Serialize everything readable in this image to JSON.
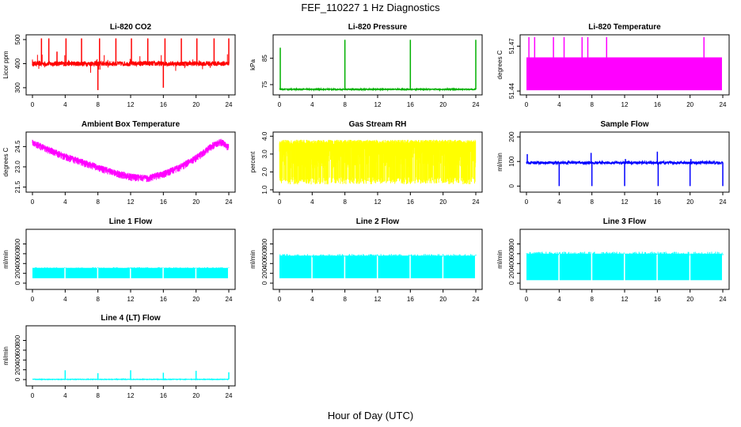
{
  "figure": {
    "title": "FEF_110227  1 Hz Diagnostics",
    "xlabel": "Hour of Day (UTC)"
  },
  "chart_data": [
    {
      "type": "line",
      "title": "Li-820 CO2",
      "ylabel": "Licor ppm",
      "color": "#ff0000",
      "xlim": [
        0,
        24
      ],
      "xticks": [
        0,
        4,
        8,
        12,
        16,
        20,
        24
      ],
      "ylim": [
        280,
        510
      ],
      "yticks": [
        300,
        400,
        500
      ],
      "style": "noisy",
      "baseline": 400,
      "band": [
        390,
        410
      ],
      "range": [
        290,
        505
      ],
      "spikes": [
        {
          "x": 1.1,
          "y": 505
        },
        {
          "x": 2.0,
          "y": 505
        },
        {
          "x": 3.0,
          "y": 450
        },
        {
          "x": 4.1,
          "y": 505
        },
        {
          "x": 6.0,
          "y": 505
        },
        {
          "x": 8.0,
          "y": 290
        },
        {
          "x": 8.2,
          "y": 505
        },
        {
          "x": 10.2,
          "y": 505
        },
        {
          "x": 12.1,
          "y": 505
        },
        {
          "x": 14.1,
          "y": 505
        },
        {
          "x": 16.0,
          "y": 300
        },
        {
          "x": 16.2,
          "y": 505
        },
        {
          "x": 18.2,
          "y": 505
        },
        {
          "x": 20.1,
          "y": 505
        },
        {
          "x": 22.2,
          "y": 505
        },
        {
          "x": 24.0,
          "y": 505
        }
      ]
    },
    {
      "type": "line",
      "title": "Li-820 Pressure",
      "ylabel": "kPa",
      "color": "#00b000",
      "xlim": [
        0,
        24
      ],
      "xticks": [
        0,
        4,
        8,
        12,
        16,
        20,
        24
      ],
      "ylim": [
        72,
        93
      ],
      "yticks": [
        75,
        85
      ],
      "style": "flat",
      "baseline": 73.2,
      "band": [
        73.0,
        73.4
      ],
      "range": [
        73,
        92
      ],
      "spikes": [
        {
          "x": 0.1,
          "y": 89
        },
        {
          "x": 8.0,
          "y": 92
        },
        {
          "x": 16.0,
          "y": 92
        },
        {
          "x": 24.0,
          "y": 92
        }
      ]
    },
    {
      "type": "area",
      "title": "Li-820 Temperature",
      "ylabel": "degrees C",
      "color": "#ff00ff",
      "xlim": [
        0,
        24
      ],
      "xticks": [
        0,
        4,
        8,
        12,
        16,
        20,
        24
      ],
      "ylim": [
        51.439,
        51.476
      ],
      "yticks": [
        51.44,
        51.47
      ],
      "style": "block",
      "band": [
        51.4405,
        51.4625
      ],
      "spikes": [
        {
          "x": 0.3,
          "y": 51.476
        },
        {
          "x": 1.0,
          "y": 51.476
        },
        {
          "x": 3.3,
          "y": 51.476
        },
        {
          "x": 4.6,
          "y": 51.476
        },
        {
          "x": 6.8,
          "y": 51.476
        },
        {
          "x": 7.5,
          "y": 51.476
        },
        {
          "x": 9.8,
          "y": 51.476
        },
        {
          "x": 21.7,
          "y": 51.476
        }
      ]
    },
    {
      "type": "line",
      "title": "Ambient Box Temperature",
      "ylabel": "degrees C",
      "color": "#ff00ff",
      "xlim": [
        0,
        24
      ],
      "xticks": [
        0,
        4,
        8,
        12,
        16,
        20,
        24
      ],
      "ylim": [
        21.3,
        25.4
      ],
      "yticks": [
        21.5,
        23.0,
        24.5
      ],
      "style": "curve",
      "curve": {
        "x": [
          0,
          2,
          4,
          6,
          8,
          10,
          12,
          14,
          16,
          18,
          20,
          22,
          23,
          24
        ],
        "y": [
          24.8,
          24.3,
          23.8,
          23.4,
          23.0,
          22.6,
          22.3,
          22.2,
          22.5,
          23.0,
          23.7,
          24.6,
          24.9,
          24.5
        ]
      },
      "noise_amp": 0.35,
      "range": [
        21.6,
        25.1
      ]
    },
    {
      "type": "area",
      "title": "Gas Stream RH",
      "ylabel": "percent",
      "color": "#ffff00",
      "xlim": [
        0,
        24
      ],
      "xticks": [
        0,
        4,
        8,
        12,
        16,
        20,
        24
      ],
      "ylim": [
        1.0,
        4.1
      ],
      "yticks": [
        1.0,
        2.0,
        3.0,
        4.0
      ],
      "style": "rh",
      "band": [
        1.3,
        3.8
      ],
      "range": [
        1.2,
        3.85
      ]
    },
    {
      "type": "line",
      "title": "Sample Flow",
      "ylabel": "ml/min",
      "color": "#0000ff",
      "xlim": [
        0,
        24
      ],
      "xticks": [
        0,
        4,
        8,
        12,
        16,
        20,
        24
      ],
      "ylim": [
        -15,
        210
      ],
      "yticks": [
        0,
        100,
        200
      ],
      "style": "flat",
      "baseline": 95,
      "band": [
        90,
        100
      ],
      "range": [
        0,
        140
      ],
      "spikes": [
        {
          "x": 0.1,
          "y": 130
        },
        {
          "x": 4.0,
          "y": 0
        },
        {
          "x": 7.9,
          "y": 135
        },
        {
          "x": 8.0,
          "y": 0
        },
        {
          "x": 12.0,
          "y": 0
        },
        {
          "x": 12.1,
          "y": 110
        },
        {
          "x": 16.0,
          "y": 140
        },
        {
          "x": 16.1,
          "y": 0
        },
        {
          "x": 20.0,
          "y": 0
        },
        {
          "x": 20.1,
          "y": 110
        },
        {
          "x": 24.0,
          "y": 0
        }
      ]
    },
    {
      "type": "area",
      "title": "Line 1 Flow",
      "ylabel": "ml/min",
      "color": "#00ffff",
      "xlim": [
        0,
        24
      ],
      "xticks": [
        0,
        4,
        8,
        12,
        16,
        20,
        24
      ],
      "ylim": [
        -80,
        1050
      ],
      "yticks": [
        0,
        200,
        400,
        600,
        800
      ],
      "style": "block",
      "band": [
        100,
        310
      ],
      "gaps": [
        4,
        8,
        12,
        16,
        20,
        24
      ]
    },
    {
      "type": "area",
      "title": "Line 2 Flow",
      "ylabel": "ml/min",
      "color": "#00ffff",
      "xlim": [
        0,
        24
      ],
      "xticks": [
        0,
        4,
        8,
        12,
        16,
        20,
        24
      ],
      "ylim": [
        -80,
        1050
      ],
      "yticks": [
        0,
        200,
        400,
        600,
        800
      ],
      "style": "block",
      "band": [
        100,
        560
      ],
      "gaps": [
        4,
        8,
        12,
        16,
        20,
        24
      ]
    },
    {
      "type": "area",
      "title": "Line 3 Flow",
      "ylabel": "ml/min",
      "color": "#00ffff",
      "xlim": [
        0,
        24
      ],
      "xticks": [
        0,
        4,
        8,
        12,
        16,
        20,
        24
      ],
      "ylim": [
        -80,
        1050
      ],
      "yticks": [
        0,
        200,
        400,
        600,
        800
      ],
      "style": "block",
      "band": [
        60,
        600
      ],
      "gaps": [
        4,
        8,
        12,
        16,
        20,
        24
      ]
    },
    {
      "type": "line",
      "title": "Line 4 (LT) Flow",
      "ylabel": "ml/min",
      "color": "#00ffff",
      "xlim": [
        0,
        24
      ],
      "xticks": [
        0,
        4,
        8,
        12,
        16,
        20,
        24
      ],
      "ylim": [
        -80,
        1050
      ],
      "yticks": [
        0,
        200,
        400,
        600,
        800
      ],
      "style": "flat",
      "baseline": 5,
      "band": [
        0,
        10
      ],
      "range": [
        0,
        190
      ],
      "spikes": [
        {
          "x": 4.0,
          "y": 190
        },
        {
          "x": 8.0,
          "y": 130
        },
        {
          "x": 12.0,
          "y": 190
        },
        {
          "x": 16.0,
          "y": 140
        },
        {
          "x": 20.0,
          "y": 180
        },
        {
          "x": 24.0,
          "y": 150
        }
      ]
    }
  ]
}
